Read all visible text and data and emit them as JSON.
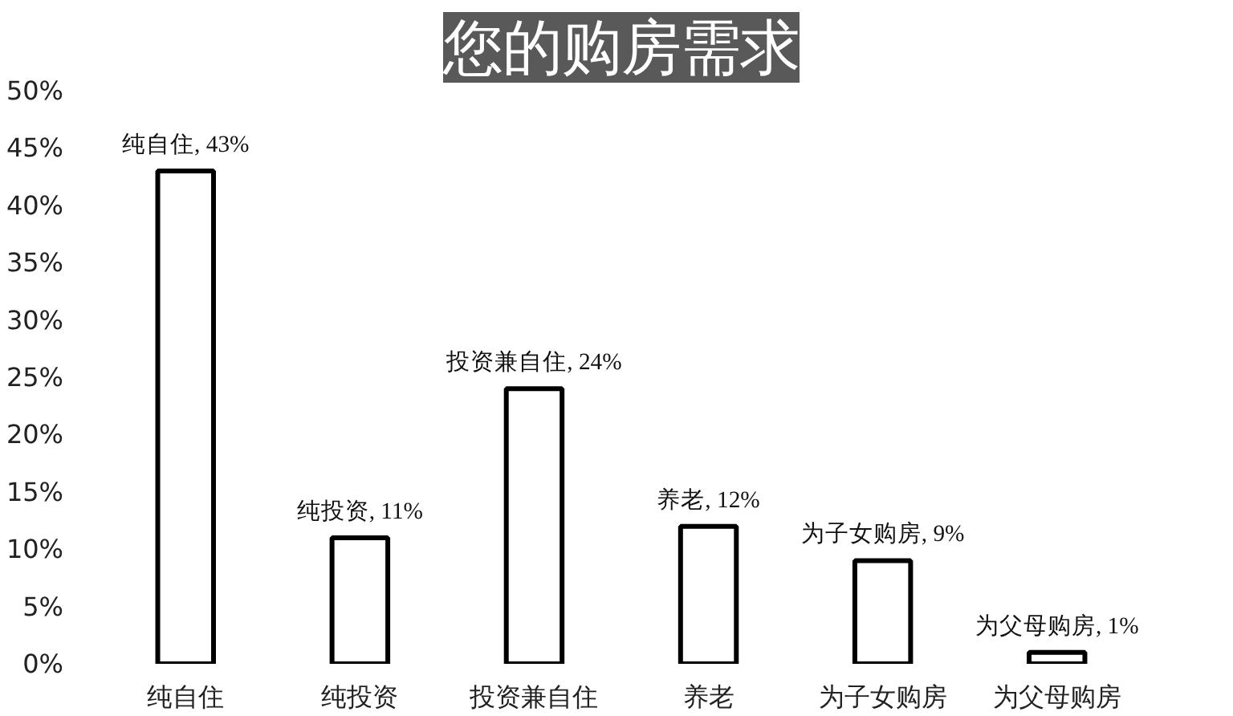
{
  "chart_data": {
    "type": "bar",
    "title": "您的购房需求",
    "categories": [
      "纯自住",
      "纯投资",
      "投资兼自住",
      "养老",
      "为子女购房",
      "为父母购房"
    ],
    "values": [
      43,
      11,
      24,
      12,
      9,
      1
    ],
    "value_labels": [
      "纯自住, 43%",
      "纯投资, 11%",
      "投资兼自住, 24%",
      "养老, 12%",
      "为子女购房, 9%",
      "为父母购房, 1%"
    ],
    "color": "#ffffff",
    "ylim": [
      0,
      50
    ],
    "yticks": [
      {
        "value": 0,
        "label": "0%"
      },
      {
        "value": 5,
        "label": "5%"
      },
      {
        "value": 10,
        "label": "10%"
      },
      {
        "value": 15,
        "label": "15%"
      },
      {
        "value": 20,
        "label": "20%"
      },
      {
        "value": 25,
        "label": "25%"
      },
      {
        "value": 30,
        "label": "30%"
      },
      {
        "value": 35,
        "label": "35%"
      },
      {
        "value": 40,
        "label": "40%"
      },
      {
        "value": 45,
        "label": "45%"
      },
      {
        "value": 50,
        "label": "50%"
      }
    ],
    "grid": false
  }
}
